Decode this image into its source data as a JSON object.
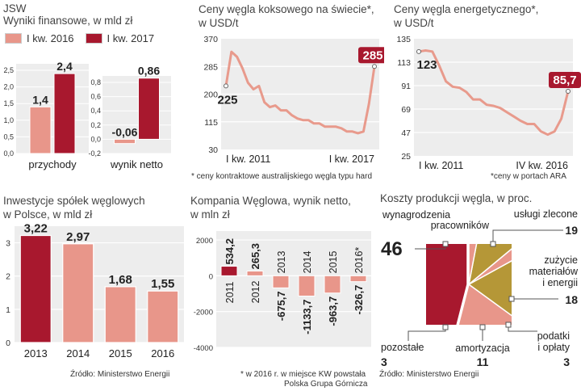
{
  "colors": {
    "salmon": "#e8968a",
    "crimson": "#a8182e",
    "olive": "#b59737",
    "panel": "#ededed",
    "line": "#e89a8c"
  },
  "panel1": {
    "source_name": "JSW",
    "title": "Wyniki finansowe, w mld zł",
    "legend": [
      "I kw. 2016",
      "I kw. 2017"
    ]
  },
  "panel2": {
    "title_line1": "Ceny węgla koksowego na świecie*,",
    "title_line2": "w USD/t",
    "footnote": "* ceny kontraktowe australijskiego węgla typu hard"
  },
  "panel3": {
    "title_line1": "Ceny węgla energetycznego*,",
    "title_line2": "w USD/t",
    "footnote": "*ceny w portach ARA"
  },
  "panel4": {
    "title_line1": "Inwestycje spółek węglowych",
    "title_line2": "w Polsce, w mld zł",
    "source": "Źródło: Ministerstwo Energii"
  },
  "panel5": {
    "title_line1": "Kompania Węglowa, wynik netto,",
    "title_line2": "w mln zł",
    "footnote_line1": "* w 2016 r. w miejsce KW powstała",
    "footnote_line2": "Polska Grupa Górnicza"
  },
  "panel6": {
    "title": "Koszty produkcji węgla, w proc.",
    "source": "Źródło: Ministerstwo Energii"
  },
  "chart_data": [
    {
      "id": "jsw_przychody",
      "type": "bar",
      "categories": [
        "przychody"
      ],
      "series": [
        {
          "name": "I kw. 2016",
          "values": [
            1.4
          ]
        },
        {
          "name": "I kw. 2017",
          "values": [
            2.4
          ]
        }
      ],
      "value_labels": [
        "1,4",
        "2,4"
      ],
      "yticks": [
        "0,0",
        "0,5",
        "1,0",
        "1,5",
        "2,0",
        "2,5"
      ],
      "ylim": [
        0,
        2.5
      ]
    },
    {
      "id": "jsw_wynik_netto",
      "type": "bar",
      "categories": [
        "wynik netto"
      ],
      "series": [
        {
          "name": "I kw. 2016",
          "values": [
            -0.06
          ]
        },
        {
          "name": "I kw. 2017",
          "values": [
            0.86
          ]
        }
      ],
      "value_labels": [
        "-0,06",
        "0,86"
      ],
      "yticks": [
        "-0,2",
        "0,0",
        "0,2",
        "0,4",
        "0,6",
        "0,8"
      ],
      "ylim": [
        -0.2,
        0.8
      ]
    },
    {
      "id": "coking_coal",
      "type": "line",
      "title": "Ceny węgla koksowego na świecie*, w USD/t",
      "values": [
        225,
        330,
        315,
        280,
        235,
        215,
        225,
        175,
        160,
        165,
        150,
        150,
        135,
        125,
        120,
        120,
        110,
        110,
        100,
        100,
        100,
        95,
        85,
        85,
        80,
        85,
        170,
        285
      ],
      "xlabels": [
        "I kw. 2011",
        "I kw. 2017"
      ],
      "yticks": [
        "30",
        "115",
        "200",
        "285",
        "370"
      ],
      "ylim": [
        30,
        370
      ],
      "labels": {
        "start": "225",
        "end": "285"
      }
    },
    {
      "id": "steam_coal",
      "type": "line",
      "title": "Ceny węgla energetycznego*, w USD/t",
      "values": [
        123,
        124,
        123,
        110,
        95,
        90,
        89,
        85,
        78,
        78,
        73,
        72,
        70,
        66,
        62,
        58,
        55,
        55,
        48,
        45,
        48,
        60,
        85.7
      ],
      "xlabels": [
        "I kw. 2011",
        "IV kw. 2016"
      ],
      "yticks": [
        "25",
        "47",
        "69",
        "91",
        "113",
        "135"
      ],
      "ylim": [
        25,
        135
      ],
      "labels": {
        "start": "123",
        "end": "85,7"
      }
    },
    {
      "id": "investments",
      "type": "bar",
      "title": "Inwestycje spółek węglowych w Polsce, w mld zł",
      "categories": [
        "2013",
        "2014",
        "2015",
        "2016"
      ],
      "values": [
        3.22,
        2.97,
        1.68,
        1.55
      ],
      "value_labels": [
        "3,22",
        "2,97",
        "1,68",
        "1,55"
      ],
      "yticks": [
        "0",
        "1",
        "2",
        "3"
      ],
      "ylim": [
        0,
        3.5
      ]
    },
    {
      "id": "kw_net",
      "type": "bar",
      "title": "Kompania Węglowa, wynik netto, w mln zł",
      "categories": [
        "2011",
        "2012",
        "2013",
        "2014",
        "2015",
        "2016*"
      ],
      "values": [
        534.2,
        265.3,
        -675.7,
        -1133.7,
        -963.7,
        -326.7
      ],
      "value_labels": [
        "534,2",
        "265,3",
        "-675,7",
        "-1133,7",
        "-963,7",
        "-326,7"
      ],
      "yticks": [
        "-4000",
        "-2000",
        "0",
        "2000"
      ],
      "ylim": [
        -4000,
        2500
      ]
    },
    {
      "id": "costs",
      "type": "pie",
      "title": "Koszty produkcji węgla, w proc.",
      "slices": [
        {
          "label": "wynagrodzenia pracowników",
          "value": 46
        },
        {
          "label": "usługi zlecone",
          "value": 19
        },
        {
          "label": "zużycie materiałów i energii",
          "value": 18
        },
        {
          "label": "podatki i opłaty",
          "value": 3
        },
        {
          "label": "amortyzacja",
          "value": 11
        },
        {
          "label": "pozostałe",
          "value": 3
        }
      ],
      "value_labels": [
        "46",
        "19",
        "18",
        "3",
        "11",
        "3"
      ]
    }
  ]
}
